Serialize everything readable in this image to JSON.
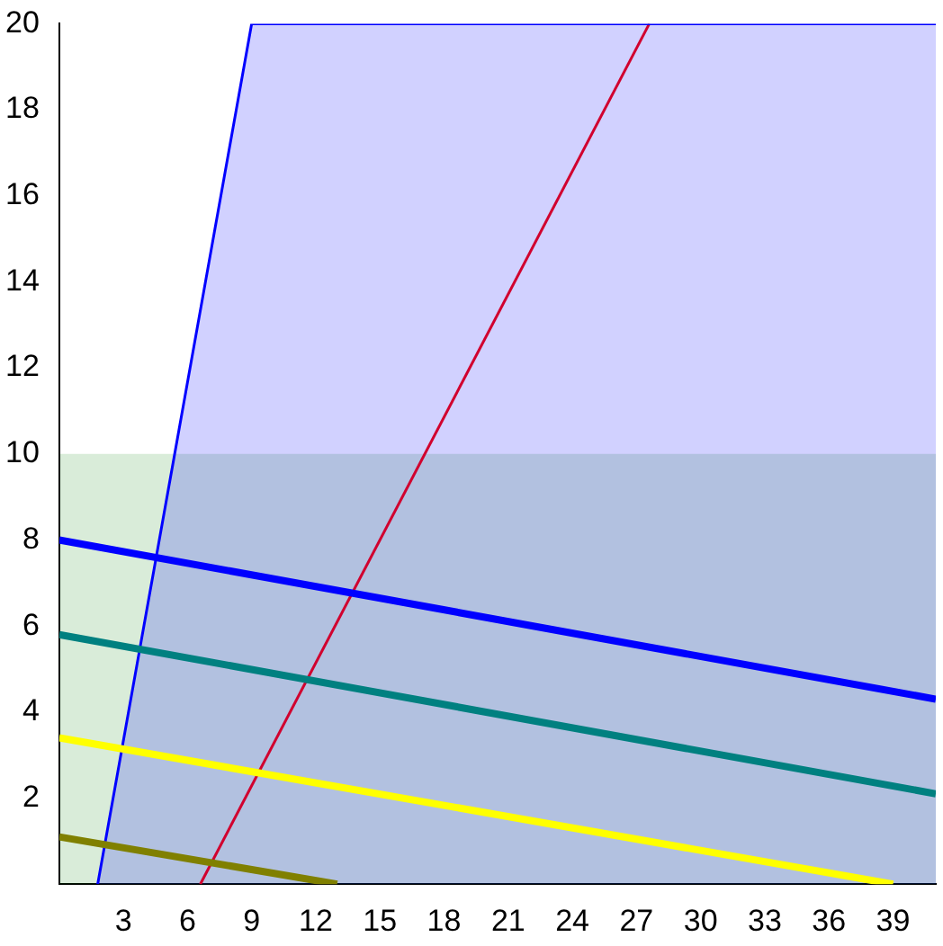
{
  "chart_data": {
    "type": "line",
    "xlim": [
      0,
      41
    ],
    "ylim": [
      0,
      20
    ],
    "xticks": [
      3,
      6,
      9,
      12,
      15,
      18,
      21,
      24,
      27,
      30,
      33,
      36,
      39
    ],
    "yticks": [
      2,
      4,
      6,
      8,
      10,
      12,
      14,
      16,
      18,
      20
    ],
    "grid": false,
    "legend": false,
    "marker": "none",
    "series": [
      {
        "color": "#0000ff",
        "x": [
          0,
          41
        ],
        "values": [
          8.0,
          4.3
        ]
      },
      {
        "color": "#008080",
        "x": [
          0,
          41
        ],
        "values": [
          5.8,
          2.1
        ]
      },
      {
        "color": "#ffff00",
        "x": [
          0,
          39
        ],
        "values": [
          3.4,
          0
        ]
      },
      {
        "color": "#808000",
        "x": [
          0,
          13
        ],
        "values": [
          1.1,
          0
        ]
      },
      {
        "type": "area",
        "color": "#0000ff",
        "x": [
          1.8,
          9,
          41
        ],
        "values": [
          0,
          20,
          20
        ]
      },
      {
        "color": "#ff0000",
        "x": [
          6.6,
          27.6
        ],
        "values": [
          0,
          20
        ]
      }
    ],
    "bands": [
      {
        "axis": "y",
        "from": 0,
        "to": 10,
        "color": "#008000"
      }
    ]
  }
}
